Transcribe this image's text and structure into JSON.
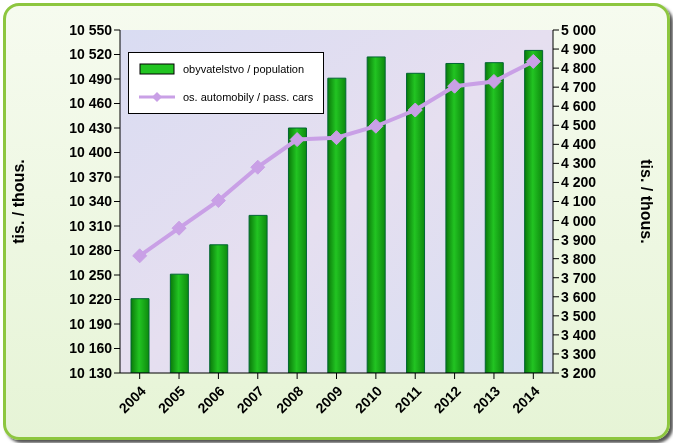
{
  "chart_data": {
    "type": "bar",
    "categories": [
      "2004",
      "2005",
      "2006",
      "2007",
      "2008",
      "2009",
      "2010",
      "2011",
      "2012",
      "2013",
      "2014"
    ],
    "y_label": "tis. / thous.",
    "y2_label": "tis. / thous.",
    "series": [
      {
        "name": "obyvatelstvo / population",
        "type": "bar",
        "color": "#22c422",
        "values": [
          10221,
          10251,
          10287,
          10323,
          10430,
          10491,
          10517,
          10497,
          10509,
          10510,
          10525
        ]
      },
      {
        "name": "os. automobily / pass. cars",
        "type": "line",
        "axis": "y2",
        "color": "#c9a0e6",
        "marker": "diamond",
        "values": [
          3815,
          3960,
          4105,
          4280,
          4425,
          4435,
          4495,
          4580,
          4705,
          4730,
          4835
        ]
      }
    ],
    "ylim": [
      10130,
      10550
    ],
    "yticks": [
      {
        "value": 10130,
        "label": "10 130"
      },
      {
        "value": 10160,
        "label": "10 160"
      },
      {
        "value": 10190,
        "label": "10 190"
      },
      {
        "value": 10220,
        "label": "10 220"
      },
      {
        "value": 10250,
        "label": "10 250"
      },
      {
        "value": 10280,
        "label": "10 280"
      },
      {
        "value": 10310,
        "label": "10 310"
      },
      {
        "value": 10340,
        "label": "10 340"
      },
      {
        "value": 10370,
        "label": "10 370"
      },
      {
        "value": 10400,
        "label": "10 400"
      },
      {
        "value": 10430,
        "label": "10 430"
      },
      {
        "value": 10460,
        "label": "10 460"
      },
      {
        "value": 10490,
        "label": "10 490"
      },
      {
        "value": 10520,
        "label": "10 520"
      },
      {
        "value": 10550,
        "label": "10 550"
      }
    ],
    "y2lim": [
      3200,
      5000
    ],
    "y2ticks": [
      {
        "value": 3200,
        "label": "3 200"
      },
      {
        "value": 3300,
        "label": "3 300"
      },
      {
        "value": 3400,
        "label": "3 400"
      },
      {
        "value": 3500,
        "label": "3 500"
      },
      {
        "value": 3600,
        "label": "3 600"
      },
      {
        "value": 3700,
        "label": "3 700"
      },
      {
        "value": 3800,
        "label": "3 800"
      },
      {
        "value": 3900,
        "label": "3 900"
      },
      {
        "value": 4000,
        "label": "4 000"
      },
      {
        "value": 4100,
        "label": "4 100"
      },
      {
        "value": 4200,
        "label": "4 200"
      },
      {
        "value": 4300,
        "label": "4 300"
      },
      {
        "value": 4400,
        "label": "4 400"
      },
      {
        "value": 4500,
        "label": "4 500"
      },
      {
        "value": 4600,
        "label": "4 600"
      },
      {
        "value": 4700,
        "label": "4 700"
      },
      {
        "value": 4800,
        "label": "4 800"
      },
      {
        "value": 4900,
        "label": "4 900"
      },
      {
        "value": 5000,
        "label": "5 000"
      }
    ],
    "legend": "upper left"
  }
}
